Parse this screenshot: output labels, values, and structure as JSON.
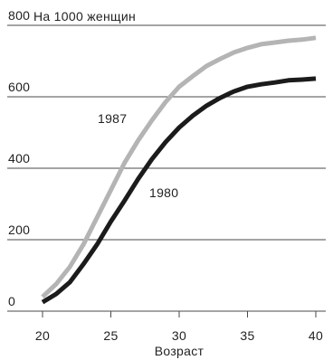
{
  "chart_data": {
    "type": "line",
    "ylabel": "На 1000 женщин",
    "xlabel": "Возраст",
    "x": [
      20,
      21,
      22,
      23,
      24,
      25,
      26,
      27,
      28,
      29,
      30,
      31,
      32,
      33,
      34,
      35,
      36,
      37,
      38,
      39,
      40
    ],
    "xticks": [
      20,
      25,
      30,
      35,
      40
    ],
    "yticks": [
      0,
      200,
      400,
      600,
      800
    ],
    "xlim": [
      20,
      40
    ],
    "ylim": [
      0,
      800
    ],
    "grid": true,
    "series": [
      {
        "name": "1987",
        "color": "#b4b4b4",
        "values": [
          40,
          76,
          124,
          187,
          263,
          339,
          415,
          478,
          534,
          585,
          628,
          658,
          686,
          706,
          724,
          737,
          747,
          752,
          757,
          760,
          765
        ]
      },
      {
        "name": "1980",
        "color": "#1b1b1b",
        "values": [
          25,
          48,
          81,
          132,
          187,
          251,
          309,
          370,
          425,
          473,
          514,
          547,
          575,
          597,
          615,
          628,
          635,
          640,
          646,
          648,
          651
        ]
      }
    ]
  }
}
